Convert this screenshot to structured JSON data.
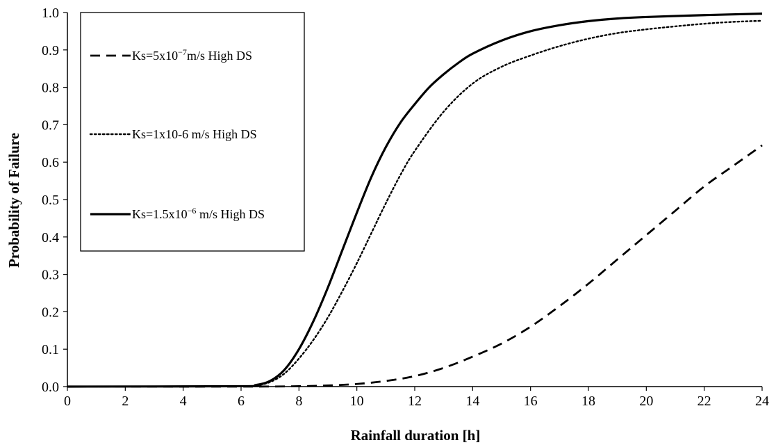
{
  "chart_data": {
    "type": "line",
    "title": "",
    "xlabel": "Rainfall duration [h]",
    "ylabel": "Probability of Failure",
    "xlim": [
      0,
      24
    ],
    "ylim": [
      0,
      1.0
    ],
    "x_ticks": [
      "0",
      "2",
      "4",
      "6",
      "8",
      "10",
      "12",
      "14",
      "16",
      "18",
      "20",
      "22",
      "24"
    ],
    "y_ticks": [
      "0.0",
      "0.1",
      "0.2",
      "0.3",
      "0.4",
      "0.5",
      "0.6",
      "0.7",
      "0.8",
      "0.9",
      "1.0"
    ],
    "grid": false,
    "legend_position": "top-left",
    "legend": [
      {
        "text": "Ks=5x10",
        "sup": "−7",
        "text_after": "m/s High DS",
        "style": "dashed"
      },
      {
        "text": "Ks=1x10-6 m/s High DS",
        "sup": "",
        "text_after": "",
        "style": "dotted"
      },
      {
        "text": "Ks=1.5x10",
        "sup": "−6",
        "text_after": " m/s High DS",
        "style": "solid"
      }
    ],
    "series": [
      {
        "name": "Ks=5x10−7m/s High DS",
        "style": "dashed",
        "x": [
          0,
          6,
          8,
          9,
          10,
          11,
          12,
          13,
          14,
          15,
          16,
          17,
          18,
          19,
          20,
          21,
          22,
          23,
          24
        ],
        "y": [
          0,
          0,
          0.001,
          0.003,
          0.007,
          0.015,
          0.028,
          0.05,
          0.08,
          0.115,
          0.16,
          0.215,
          0.275,
          0.34,
          0.405,
          0.47,
          0.535,
          0.59,
          0.645
        ]
      },
      {
        "name": "Ks=1x10-6 m/s High DS",
        "style": "dotted",
        "x": [
          0,
          6,
          6.5,
          7,
          7.5,
          8,
          8.5,
          9,
          9.5,
          10,
          10.5,
          11,
          11.5,
          12,
          13,
          14,
          15,
          16,
          17,
          18,
          19,
          20,
          21,
          22,
          23,
          24
        ],
        "y": [
          0,
          0.001,
          0.003,
          0.012,
          0.035,
          0.075,
          0.125,
          0.185,
          0.255,
          0.33,
          0.41,
          0.49,
          0.565,
          0.63,
          0.735,
          0.81,
          0.855,
          0.885,
          0.91,
          0.93,
          0.945,
          0.955,
          0.963,
          0.97,
          0.975,
          0.978
        ]
      },
      {
        "name": "Ks=1.5x10−6 m/s High DS",
        "style": "solid",
        "x": [
          0,
          6,
          6.5,
          7,
          7.5,
          8,
          8.5,
          9,
          9.5,
          10,
          10.5,
          11,
          11.5,
          12,
          12.5,
          13,
          13.5,
          14,
          15,
          16,
          17,
          18,
          19,
          20,
          22,
          24
        ],
        "y": [
          0,
          0.001,
          0.004,
          0.015,
          0.045,
          0.1,
          0.175,
          0.265,
          0.365,
          0.465,
          0.56,
          0.64,
          0.705,
          0.755,
          0.8,
          0.835,
          0.865,
          0.89,
          0.925,
          0.95,
          0.966,
          0.977,
          0.984,
          0.988,
          0.993,
          0.997
        ]
      }
    ]
  }
}
